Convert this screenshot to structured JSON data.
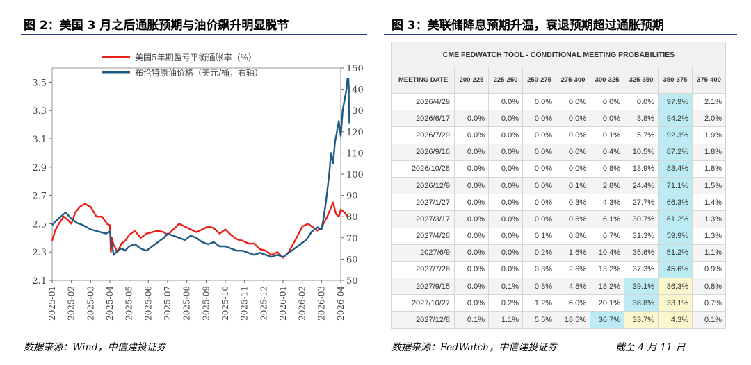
{
  "left_figure": {
    "title": "图 2：美国 3 月之后通胀预期与油价飙升明显脱节",
    "source": "数据来源：Wind，中信建投证券"
  },
  "right_figure": {
    "title": "图 3：美联储降息预期升温，衰退预期超过通胀预期",
    "source": "数据来源：FedWatch，中信建投证券",
    "cutoff": "截至 4 月 11 日"
  },
  "colors": {
    "red_series": "#e8211a",
    "blue_series": "#1d5a86",
    "rule": "#1f3d73",
    "highlight_blue": "#bcebf3",
    "highlight_yellow": "#fbf7cd"
  },
  "chart_data": [
    {
      "type": "line",
      "title": "",
      "legend_position": "top-center",
      "x_tick_labels": [
        "2025-01",
        "2025-02",
        "2025-03",
        "2025-04",
        "2025-05",
        "2025-06",
        "2025-07",
        "2025-08",
        "2025-09",
        "2025-10",
        "2025-11",
        "2025-12",
        "2026-01",
        "2026-02",
        "2026-03",
        "2026-04"
      ],
      "y_left": {
        "ticks": [
          2.1,
          2.3,
          2.5,
          2.7,
          2.9,
          3.1,
          3.3,
          3.5
        ],
        "ylim": [
          2.1,
          3.6
        ]
      },
      "y_right": {
        "ticks": [
          50,
          60,
          70,
          80,
          90,
          100,
          110,
          120,
          130,
          140,
          150
        ],
        "ylim": [
          50,
          150
        ]
      },
      "series": [
        {
          "name": "美国5年期盈亏平衡通胀率（%）",
          "axis": "left",
          "color": "#e8211a",
          "x": [
            0,
            0.15,
            0.35,
            0.6,
            0.8,
            1.0,
            1.2,
            1.45,
            1.7,
            2.0,
            2.3,
            2.6,
            2.85,
            3.0,
            3.05,
            3.1,
            3.2,
            3.4,
            3.6,
            3.8,
            4.0,
            4.3,
            4.6,
            4.9,
            5.2,
            5.5,
            5.8,
            6.0,
            6.3,
            6.6,
            6.9,
            7.2,
            7.5,
            7.8,
            8.1,
            8.4,
            8.7,
            9.0,
            9.3,
            9.6,
            9.9,
            10.2,
            10.5,
            10.8,
            11.1,
            11.4,
            11.7,
            12.0,
            12.3,
            12.5,
            12.7,
            13.0,
            13.3,
            13.6,
            13.8,
            14.0,
            14.1,
            14.3,
            14.45,
            14.6,
            14.75,
            14.9,
            15.0,
            15.2,
            15.35
          ],
          "values": [
            2.38,
            2.45,
            2.5,
            2.55,
            2.53,
            2.5,
            2.58,
            2.62,
            2.64,
            2.62,
            2.55,
            2.55,
            2.5,
            2.49,
            2.3,
            2.4,
            2.35,
            2.3,
            2.36,
            2.38,
            2.42,
            2.45,
            2.4,
            2.43,
            2.44,
            2.45,
            2.44,
            2.42,
            2.46,
            2.5,
            2.48,
            2.46,
            2.44,
            2.46,
            2.48,
            2.47,
            2.43,
            2.46,
            2.42,
            2.39,
            2.38,
            2.36,
            2.36,
            2.32,
            2.31,
            2.28,
            2.3,
            2.26,
            2.3,
            2.35,
            2.4,
            2.48,
            2.5,
            2.47,
            2.45,
            2.47,
            2.5,
            2.55,
            2.6,
            2.65,
            2.57,
            2.55,
            2.6,
            2.58,
            2.55
          ]
        },
        {
          "name": "布伦特原油价格（美元/桶，右轴）",
          "axis": "right",
          "color": "#1d5a86",
          "x": [
            0,
            0.2,
            0.45,
            0.7,
            1.0,
            1.3,
            1.6,
            2.0,
            2.4,
            2.8,
            3.0,
            3.1,
            3.2,
            3.4,
            3.6,
            3.8,
            4.0,
            4.3,
            4.6,
            4.9,
            5.2,
            5.5,
            5.8,
            6.0,
            6.3,
            6.6,
            6.9,
            7.2,
            7.5,
            7.8,
            8.1,
            8.4,
            8.7,
            9.0,
            9.3,
            9.6,
            9.9,
            10.2,
            10.5,
            10.8,
            11.1,
            11.4,
            11.7,
            12.0,
            12.3,
            12.6,
            12.9,
            13.2,
            13.5,
            13.8,
            14.0,
            14.1,
            14.2,
            14.3,
            14.4,
            14.5,
            14.6,
            14.7,
            14.8,
            14.9,
            15.0,
            15.1,
            15.2,
            15.3,
            15.35,
            15.4,
            15.45
          ],
          "values": [
            76,
            78,
            80,
            82,
            79,
            77,
            76,
            74,
            73,
            72,
            73,
            67,
            62,
            64,
            65,
            64,
            66,
            67,
            65,
            64,
            66,
            68,
            70,
            72,
            71,
            70,
            69,
            71,
            70,
            68,
            67,
            68,
            66,
            66,
            65,
            64,
            64,
            63,
            62,
            63,
            62,
            61,
            62,
            61,
            63,
            65,
            67,
            69,
            73,
            75,
            74,
            79,
            85,
            92,
            100,
            110,
            105,
            115,
            120,
            125,
            118,
            130,
            135,
            140,
            145,
            145,
            124
          ]
        }
      ]
    },
    {
      "type": "table",
      "title": "CME FEDWATCH TOOL - CONDITIONAL MEETING PROBABILITIES",
      "columns": [
        "MEETING DATE",
        "200-225",
        "225-250",
        "250-275",
        "275-300",
        "300-325",
        "325-350",
        "350-375",
        "375-400"
      ],
      "rows": [
        [
          "2026/4/29",
          "",
          "0.0%",
          "0.0%",
          "0.0%",
          "0.0%",
          "0.0%",
          "97.9%",
          "2.1%"
        ],
        [
          "2026/6/17",
          "0.0%",
          "0.0%",
          "0.0%",
          "0.0%",
          "0.0%",
          "3.8%",
          "94.2%",
          "2.0%"
        ],
        [
          "2026/7/29",
          "0.0%",
          "0.0%",
          "0.0%",
          "0.0%",
          "0.1%",
          "5.7%",
          "92.3%",
          "1.9%"
        ],
        [
          "2026/9/16",
          "0.0%",
          "0.0%",
          "0.0%",
          "0.0%",
          "0.4%",
          "10.5%",
          "87.2%",
          "1.8%"
        ],
        [
          "2026/10/28",
          "0.0%",
          "0.0%",
          "0.0%",
          "0.0%",
          "0.8%",
          "13.9%",
          "83.4%",
          "1.8%"
        ],
        [
          "2026/12/9",
          "0.0%",
          "0.0%",
          "0.0%",
          "0.1%",
          "2.8%",
          "24.4%",
          "71.1%",
          "1.5%"
        ],
        [
          "2027/1/27",
          "0.0%",
          "0.0%",
          "0.0%",
          "0.3%",
          "4.3%",
          "27.7%",
          "66.3%",
          "1.4%"
        ],
        [
          "2027/3/17",
          "0.0%",
          "0.0%",
          "0.0%",
          "0.6%",
          "6.1%",
          "30.7%",
          "61.2%",
          "1.3%"
        ],
        [
          "2027/4/28",
          "0.0%",
          "0.0%",
          "0.1%",
          "0.8%",
          "6.7%",
          "31.3%",
          "59.9%",
          "1.3%"
        ],
        [
          "2027/6/9",
          "0.0%",
          "0.0%",
          "0.2%",
          "1.6%",
          "10.4%",
          "35.6%",
          "51.2%",
          "1.1%"
        ],
        [
          "2027/7/28",
          "0.0%",
          "0.0%",
          "0.3%",
          "2.6%",
          "13.2%",
          "37.3%",
          "45.6%",
          "0.9%"
        ],
        [
          "2027/9/15",
          "0.0%",
          "0.1%",
          "0.8%",
          "4.8%",
          "18.2%",
          "39.1%",
          "36.3%",
          "0.8%"
        ],
        [
          "2027/10/27",
          "0.0%",
          "0.2%",
          "1.2%",
          "6.0%",
          "20.1%",
          "38.8%",
          "33.1%",
          "0.7%"
        ],
        [
          "2027/12/8",
          "0.1%",
          "1.1%",
          "5.5%",
          "18.5%",
          "36.7%",
          "33.7%",
          "4.3%",
          "0.1%"
        ]
      ],
      "highlights": [
        [
          "blue",
          "blue",
          "blue",
          "blue",
          "blue",
          "blue",
          "blue",
          "blue",
          "blue",
          "blue",
          "blue",
          "yellow",
          "yellow",
          "yellow"
        ]
      ],
      "highlight_cells": [
        {
          "row": 0,
          "col": 7,
          "color": "blue"
        },
        {
          "row": 1,
          "col": 7,
          "color": "blue"
        },
        {
          "row": 2,
          "col": 7,
          "color": "blue"
        },
        {
          "row": 3,
          "col": 7,
          "color": "blue"
        },
        {
          "row": 4,
          "col": 7,
          "color": "blue"
        },
        {
          "row": 5,
          "col": 7,
          "color": "blue"
        },
        {
          "row": 6,
          "col": 7,
          "color": "blue"
        },
        {
          "row": 7,
          "col": 7,
          "color": "blue"
        },
        {
          "row": 8,
          "col": 7,
          "color": "blue"
        },
        {
          "row": 9,
          "col": 7,
          "color": "blue"
        },
        {
          "row": 10,
          "col": 7,
          "color": "blue"
        },
        {
          "row": 11,
          "col": 6,
          "color": "blue"
        },
        {
          "row": 11,
          "col": 7,
          "color": "yellow"
        },
        {
          "row": 12,
          "col": 6,
          "color": "blue"
        },
        {
          "row": 12,
          "col": 7,
          "color": "yellow"
        },
        {
          "row": 13,
          "col": 5,
          "color": "blue"
        },
        {
          "row": 13,
          "col": 6,
          "color": "yellow"
        },
        {
          "row": 13,
          "col": 7,
          "color": "yellow"
        }
      ]
    }
  ]
}
